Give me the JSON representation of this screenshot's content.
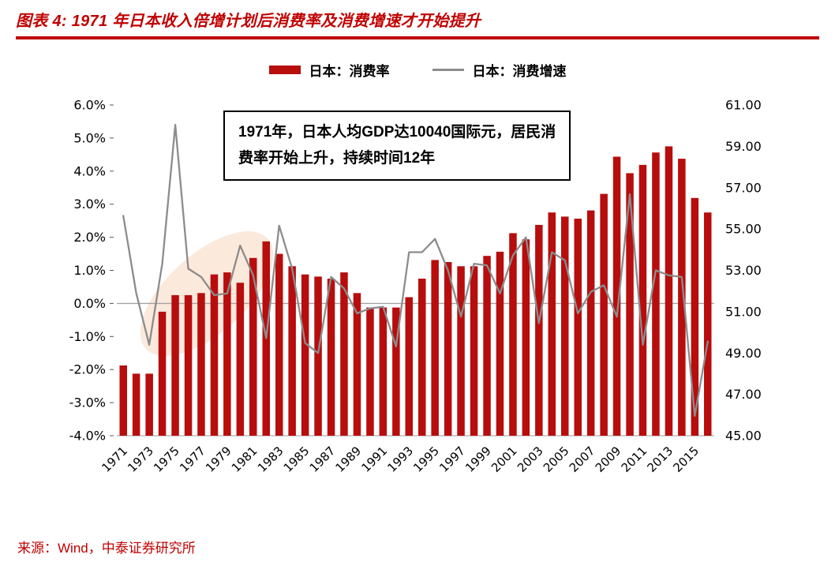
{
  "page": {
    "title": "图表 4:  1971 年日本收入倍增计划后消费率及消费增速才开始提升",
    "source": "来源：Wind，中泰证券研究所"
  },
  "legend": {
    "bar_label": "日本：消费率",
    "line_label": "日本：消费增速"
  },
  "annotation": {
    "line1": "1971年，日本人均GDP达10040国际元，居民消",
    "line2": "费率开始上升，持续时间12年"
  },
  "colors": {
    "accent_red": "#c00000",
    "bar": "#b70d0d",
    "line": "#8c8c8c",
    "zero_line": "#a3a3a3",
    "axis_text": "#000000",
    "highlight_ellipse": "#fbe7d8"
  },
  "chart_data": {
    "type": "bar+line",
    "title": "1971 年日本收入倍增计划后消费率及消费增速才开始提升",
    "categories": [
      "1971",
      "1972",
      "1973",
      "1974",
      "1975",
      "1976",
      "1977",
      "1978",
      "1979",
      "1980",
      "1981",
      "1982",
      "1983",
      "1984",
      "1985",
      "1986",
      "1987",
      "1988",
      "1989",
      "1990",
      "1991",
      "1992",
      "1993",
      "1994",
      "1995",
      "1996",
      "1997",
      "1998",
      "1999",
      "2000",
      "2001",
      "2002",
      "2003",
      "2004",
      "2005",
      "2006",
      "2007",
      "2008",
      "2009",
      "2010",
      "2011",
      "2012",
      "2013",
      "2014",
      "2015",
      "2016"
    ],
    "series": [
      {
        "name": "日本：消费率",
        "type": "bar",
        "axis": "right",
        "values": [
          48.4,
          48.0,
          48.0,
          51.0,
          51.8,
          51.8,
          51.9,
          52.8,
          52.9,
          52.4,
          53.6,
          54.4,
          53.8,
          53.2,
          52.8,
          52.7,
          52.6,
          52.9,
          51.9,
          51.2,
          51.2,
          51.2,
          51.7,
          52.6,
          53.5,
          53.4,
          53.2,
          53.2,
          53.7,
          53.9,
          54.8,
          54.5,
          55.2,
          55.8,
          55.6,
          55.5,
          55.9,
          56.7,
          58.5,
          57.7,
          58.1,
          58.7,
          59.0,
          58.4,
          56.5,
          55.8
        ]
      },
      {
        "name": "日本：消费增速",
        "type": "line",
        "axis": "left",
        "values": [
          2.65,
          0.3,
          -1.25,
          1.2,
          5.4,
          1.05,
          0.8,
          0.25,
          0.3,
          1.75,
          0.85,
          -1.05,
          2.35,
          1.05,
          -1.2,
          -1.5,
          0.8,
          0.45,
          -0.3,
          -0.15,
          -0.1,
          -1.3,
          1.55,
          1.55,
          1.95,
          1.0,
          -0.4,
          1.2,
          1.15,
          0.3,
          1.45,
          2.0,
          -0.6,
          1.55,
          1.3,
          -0.3,
          0.35,
          0.55,
          -0.4,
          3.3,
          -1.25,
          1.0,
          0.85,
          0.8,
          -3.4,
          -1.15
        ]
      }
    ],
    "left_axis": {
      "min": -4,
      "max": 6,
      "tick_step": 1,
      "ticks": [
        "6.0%",
        "5.0%",
        "4.0%",
        "3.0%",
        "2.0%",
        "1.0%",
        "0.0%",
        "-1.0%",
        "-2.0%",
        "-3.0%",
        "-4.0%"
      ]
    },
    "right_axis": {
      "min": 45,
      "max": 61,
      "tick_step": 2,
      "ticks": [
        "61.00",
        "59.00",
        "57.00",
        "55.00",
        "53.00",
        "51.00",
        "49.00",
        "47.00",
        "45.00"
      ]
    },
    "x_tick_labels": [
      "1971",
      "1973",
      "1975",
      "1977",
      "1979",
      "1981",
      "1983",
      "1985",
      "1987",
      "1989",
      "1991",
      "1993",
      "1995",
      "1997",
      "1999",
      "2001",
      "2003",
      "2005",
      "2007",
      "2009",
      "2011",
      "2013",
      "2015"
    ],
    "legend_position": "top",
    "grid": "zero line only"
  }
}
